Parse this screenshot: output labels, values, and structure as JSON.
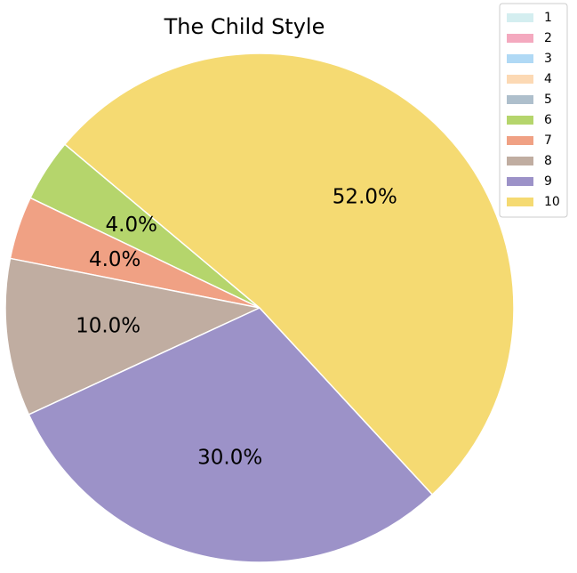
{
  "chart_data": {
    "type": "pie",
    "title": "The Child Style",
    "categories": [
      "1",
      "2",
      "3",
      "4",
      "5",
      "6",
      "7",
      "8",
      "9",
      "10"
    ],
    "values": [
      0,
      0,
      0,
      0,
      0,
      4.0,
      4.0,
      10.0,
      30.0,
      52.0
    ],
    "labels": [
      "",
      "",
      "",
      "",
      "",
      "4.0%",
      "4.0%",
      "10.0%",
      "30.0%",
      "52.0%"
    ],
    "colors": [
      "#d4eef0",
      "#f4a9bf",
      "#b0d9f5",
      "#fcd9b4",
      "#aebfcc",
      "#b5d56c",
      "#f0a184",
      "#c0ada1",
      "#9c92c8",
      "#f5da72"
    ],
    "legend_position": "top-right",
    "start_angle_deg": 140,
    "direction": "counterclockwise"
  }
}
